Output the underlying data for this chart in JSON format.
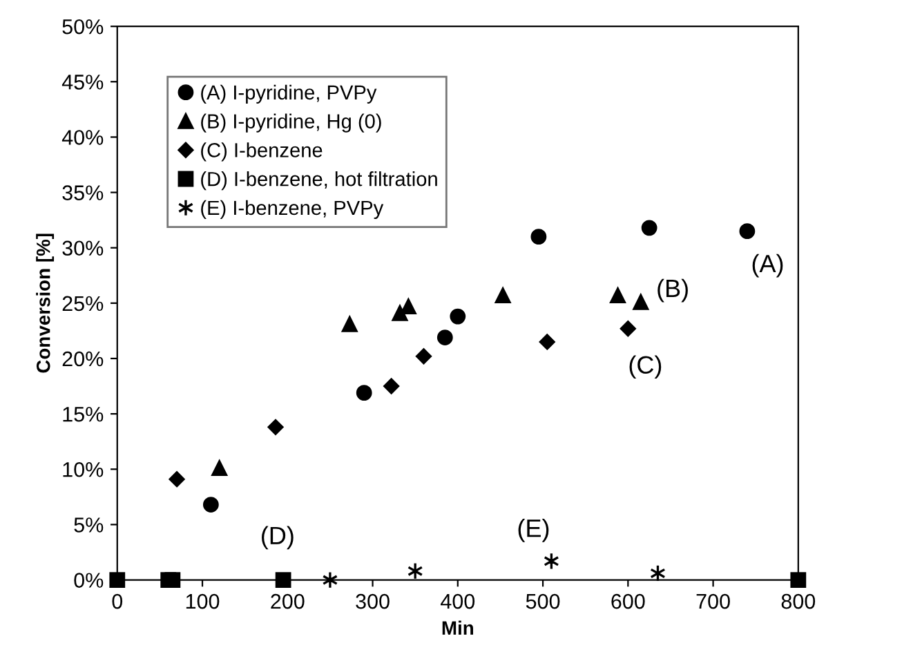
{
  "chart_data": {
    "type": "scatter",
    "xlabel": "Min",
    "ylabel": "Conversion [%]",
    "xlim": [
      0,
      800
    ],
    "xticks": [
      0,
      100,
      200,
      300,
      400,
      500,
      600,
      700,
      800
    ],
    "ylim": [
      0,
      50
    ],
    "yticks": [
      {
        "value": 0,
        "label": "0%"
      },
      {
        "value": 5,
        "label": "5%"
      },
      {
        "value": 10,
        "label": "10%"
      },
      {
        "value": 15,
        "label": "15%"
      },
      {
        "value": 20,
        "label": "20%"
      },
      {
        "value": 25,
        "label": "25%"
      },
      {
        "value": 30,
        "label": "30%"
      },
      {
        "value": 35,
        "label": "35%"
      },
      {
        "value": 40,
        "label": "40%"
      },
      {
        "value": 45,
        "label": "45%"
      },
      {
        "value": 50,
        "label": "50%"
      }
    ],
    "grid": false,
    "legend": "top left",
    "series": [
      {
        "name": "(A) I-pyridine, PVPy",
        "color": "#000000",
        "marker": "circle",
        "x": [
          110,
          290,
          385,
          400,
          495,
          625,
          740
        ],
        "values": [
          6.8,
          16.9,
          21.9,
          23.8,
          31.0,
          31.8,
          31.5
        ]
      },
      {
        "name": "(B) I-pyridine, Hg (0)",
        "color": "#000000",
        "marker": "triangle",
        "x": [
          120,
          273,
          332,
          342,
          453,
          588,
          615
        ],
        "values": [
          10.1,
          23.1,
          24.1,
          24.7,
          25.7,
          25.7,
          25.1
        ]
      },
      {
        "name": "(C) I-benzene",
        "color": "#000000",
        "marker": "diamond",
        "x": [
          70,
          186,
          322,
          360,
          505,
          600
        ],
        "values": [
          9.1,
          13.8,
          17.5,
          20.2,
          21.5,
          22.7
        ]
      },
      {
        "name": "(D) I-benzene, hot filtration",
        "color": "#000000",
        "marker": "square",
        "x": [
          0,
          60,
          65,
          195,
          800
        ],
        "values": [
          0,
          0,
          0,
          0,
          0
        ]
      },
      {
        "name": "(E) I-benzene, PVPy",
        "color": "#000000",
        "marker": "cross",
        "x": [
          250,
          350,
          510,
          635
        ],
        "values": [
          0,
          0.8,
          1.7,
          0.6
        ]
      }
    ],
    "annotations": [
      "(A)",
      "(B)",
      "(C)",
      "(D)",
      "(E)"
    ]
  }
}
